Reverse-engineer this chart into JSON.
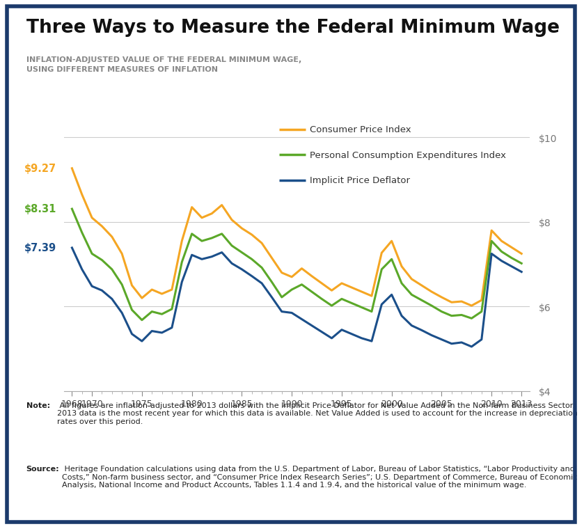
{
  "title": "Three Ways to Measure the Federal Minimum Wage",
  "subtitle": "INFLATION-ADJUSTED VALUE OF THE FEDERAL MINIMUM WAGE,\nUSING DIFFERENT MEASURES OF INFLATION",
  "note_bold": "Note:",
  "note_regular": " All figures are inflation-adjusted to 2013 dollars with the Implicit Price Deflator for Net Value Added in the Non-farm Business Sector. 2013 data is the most recent year for which this data is available. Net Value Added is used to account for the increase in depreciation rates over this period.",
  "source_bold": "Source:",
  "source_regular": " Heritage Foundation calculations using data from the U.S. Department of Labor, Bureau of Labor Statistics, “Labor Productivity and Costs,” Non-farm business sector, and “Consumer Price Index Research Series”; U.S. Department of Commerce, Bureau of Economic Analysis, National Income and Product Accounts, Tables 1.1.4 and 1.9.4, and the historical value of the minimum wage.",
  "legend_labels": [
    "Consumer Price Index",
    "Personal Consumption Expenditures Index",
    "Implicit Price Deflator"
  ],
  "line_colors": [
    "#F5A623",
    "#5BA829",
    "#1B4F8A"
  ],
  "label_values": [
    "$9.27",
    "$8.31",
    "$7.39"
  ],
  "label_colors": [
    "#F5A623",
    "#5BA829",
    "#1B4F8A"
  ],
  "ylim": [
    4.0,
    10.5
  ],
  "yticks": [
    4,
    6,
    8,
    10
  ],
  "ytick_labels": [
    "$4",
    "$6",
    "$8",
    "$10"
  ],
  "bg_color": "#FFFFFF",
  "border_color": "#1B3A6B",
  "grid_color": "#CCCCCC",
  "xtick_years": [
    1968,
    1970,
    1975,
    1980,
    1985,
    1990,
    1995,
    2000,
    2005,
    2010,
    2013
  ],
  "cpi": [
    9.27,
    8.65,
    8.1,
    7.9,
    7.65,
    7.25,
    6.5,
    6.2,
    6.4,
    6.3,
    6.4,
    7.55,
    8.35,
    8.1,
    8.2,
    8.4,
    8.05,
    7.85,
    7.7,
    7.5,
    7.15,
    6.8,
    6.7,
    6.9,
    6.72,
    6.55,
    6.38,
    6.55,
    6.45,
    6.35,
    6.25,
    7.27,
    7.55,
    6.95,
    6.65,
    6.5,
    6.35,
    6.22,
    6.1,
    6.12,
    6.02,
    6.15,
    7.8,
    7.55,
    7.4,
    7.25
  ],
  "pce": [
    8.31,
    7.75,
    7.25,
    7.1,
    6.88,
    6.52,
    5.92,
    5.68,
    5.88,
    5.82,
    5.94,
    7.05,
    7.72,
    7.55,
    7.62,
    7.72,
    7.44,
    7.28,
    7.12,
    6.92,
    6.58,
    6.22,
    6.4,
    6.52,
    6.35,
    6.18,
    6.02,
    6.18,
    6.08,
    5.98,
    5.88,
    6.88,
    7.12,
    6.55,
    6.28,
    6.15,
    6.02,
    5.88,
    5.78,
    5.8,
    5.72,
    5.88,
    7.55,
    7.3,
    7.15,
    7.02
  ],
  "ipd": [
    7.39,
    6.88,
    6.48,
    6.38,
    6.18,
    5.85,
    5.35,
    5.18,
    5.42,
    5.38,
    5.5,
    6.58,
    7.22,
    7.12,
    7.18,
    7.28,
    7.02,
    6.88,
    6.72,
    6.55,
    6.22,
    5.88,
    5.85,
    5.7,
    5.55,
    5.4,
    5.25,
    5.45,
    5.35,
    5.25,
    5.18,
    6.05,
    6.28,
    5.78,
    5.55,
    5.44,
    5.32,
    5.22,
    5.12,
    5.15,
    5.05,
    5.22,
    7.25,
    7.08,
    6.95,
    6.82
  ]
}
